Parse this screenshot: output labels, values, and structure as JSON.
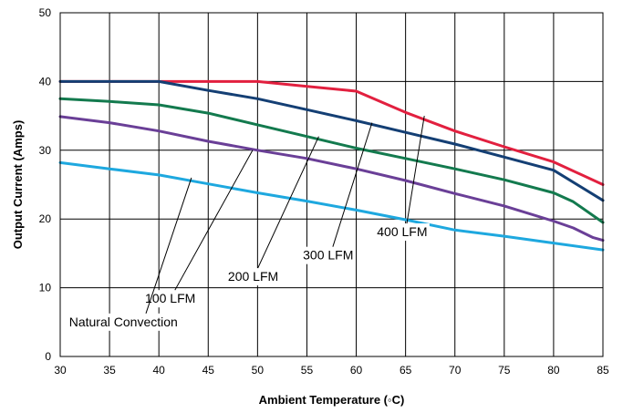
{
  "chart_data": {
    "type": "line",
    "xlabel": "Ambient Temperature (◦C)",
    "ylabel": "Output Current (Amps)",
    "xlim": [
      30,
      85
    ],
    "ylim": [
      0,
      50
    ],
    "xticks": [
      30,
      35,
      40,
      45,
      50,
      55,
      60,
      65,
      70,
      75,
      80,
      85
    ],
    "yticks": [
      0,
      10,
      20,
      30,
      40,
      50
    ],
    "grid": true,
    "series": [
      {
        "name": "400 LFM",
        "color": "#e2203f",
        "x": [
          30,
          40,
          50,
          55,
          60,
          65,
          70,
          75,
          80,
          85
        ],
        "y": [
          40,
          40,
          40,
          39.3,
          38.6,
          35.5,
          32.8,
          30.5,
          28.3,
          25
        ]
      },
      {
        "name": "300 LFM",
        "color": "#143f74",
        "x": [
          30,
          40,
          45,
          50,
          55,
          60,
          65,
          70,
          75,
          80,
          85
        ],
        "y": [
          40,
          40,
          38.7,
          37.5,
          35.9,
          34.3,
          32.6,
          30.9,
          29,
          27.1,
          22.7
        ]
      },
      {
        "name": "200 LFM",
        "color": "#137a4e",
        "x": [
          30,
          35,
          40,
          45,
          50,
          55,
          60,
          65,
          70,
          75,
          80,
          82,
          85
        ],
        "y": [
          37.5,
          37.1,
          36.6,
          35.4,
          33.7,
          32,
          30.3,
          28.8,
          27.3,
          25.7,
          23.8,
          22.5,
          19.5
        ]
      },
      {
        "name": "100 LFM",
        "color": "#6a3f97",
        "x": [
          30,
          35,
          40,
          45,
          50,
          55,
          60,
          65,
          70,
          75,
          80,
          82,
          84,
          85
        ],
        "y": [
          34.9,
          34,
          32.8,
          31.3,
          30,
          28.8,
          27.3,
          25.6,
          23.7,
          21.9,
          19.7,
          18.7,
          17.3,
          16.9
        ]
      },
      {
        "name": "Natural Convection",
        "color": "#1ea8df",
        "x": [
          30,
          35,
          40,
          45,
          50,
          55,
          60,
          65,
          70,
          75,
          80,
          85
        ],
        "y": [
          28.2,
          27.3,
          26.4,
          25.1,
          23.8,
          22.6,
          21.3,
          19.9,
          18.4,
          17.5,
          16.5,
          15.5
        ]
      }
    ],
    "annotations": [
      {
        "text": "400 LFM",
        "series": 0,
        "label_x": 62.1,
        "label_y": 17.5,
        "line_to_x": 66.9,
        "line_to_y": 35
      },
      {
        "text": "300 LFM",
        "series": 1,
        "label_x": 54.6,
        "label_y": 14.1,
        "line_to_x": 61.6,
        "line_to_y": 34
      },
      {
        "text": "200 LFM",
        "series": 2,
        "label_x": 47.0,
        "label_y": 11.0,
        "line_to_x": 56.2,
        "line_to_y": 32
      },
      {
        "text": "100 LFM",
        "series": 3,
        "label_x": 38.6,
        "label_y": 7.8,
        "line_to_x": 49.5,
        "line_to_y": 30
      },
      {
        "text": "Natural Convection",
        "series": 4,
        "label_x": 30.9,
        "label_y": 4.4,
        "line_to_x": 43.3,
        "line_to_y": 26
      }
    ]
  }
}
